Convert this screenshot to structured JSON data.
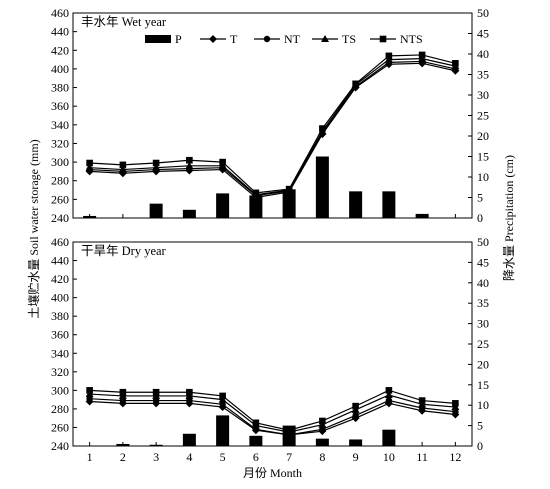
{
  "chart_data": [
    {
      "type": "bar+line",
      "panel_label": "丰水年 Wet year",
      "x_categories": [
        "1",
        "2",
        "3",
        "4",
        "5",
        "6",
        "7",
        "8",
        "9",
        "10",
        "11",
        "12"
      ],
      "xlabel": "",
      "ylabel_left": "",
      "ylabel_right": "",
      "ylim_left": [
        240,
        460
      ],
      "yticks_left": [
        240,
        260,
        280,
        300,
        320,
        340,
        360,
        380,
        400,
        420,
        440,
        460
      ],
      "ylim_right": [
        0,
        50
      ],
      "yticks_right": [
        0,
        5,
        10,
        15,
        20,
        25,
        30,
        35,
        40,
        45,
        50
      ],
      "bars": {
        "name": "P",
        "axis": "right",
        "values": [
          0.5,
          0,
          3.5,
          2,
          6,
          5.5,
          7,
          15,
          6.5,
          6.5,
          1,
          0
        ]
      },
      "series": [
        {
          "name": "T",
          "marker": "diamond",
          "axis": "left",
          "values": [
            290,
            288,
            290,
            291,
            292,
            262,
            268,
            330,
            380,
            405,
            406,
            398
          ]
        },
        {
          "name": "NT",
          "marker": "circle",
          "axis": "left",
          "values": [
            292,
            290,
            292,
            293,
            294,
            264,
            269,
            331,
            381,
            407,
            408,
            400
          ]
        },
        {
          "name": "TS",
          "marker": "triangle",
          "axis": "left",
          "values": [
            294,
            292,
            294,
            296,
            296,
            265,
            270,
            333,
            383,
            410,
            411,
            403
          ]
        },
        {
          "name": "NTS",
          "marker": "square",
          "axis": "left",
          "values": [
            299,
            297,
            299,
            302,
            300,
            267,
            271,
            336,
            384,
            414,
            415,
            406
          ]
        }
      ],
      "legend": {
        "placement": "top",
        "items": [
          "P",
          "T",
          "NT",
          "TS",
          "NTS"
        ]
      },
      "grid": false
    },
    {
      "type": "bar+line",
      "panel_label": "干旱年 Dry year",
      "x_categories": [
        "1",
        "2",
        "3",
        "4",
        "5",
        "6",
        "7",
        "8",
        "9",
        "10",
        "11",
        "12"
      ],
      "xlabel": "月份 Month",
      "ylabel_left": "",
      "ylabel_right": "",
      "ylim_left": [
        240,
        460
      ],
      "yticks_left": [
        240,
        260,
        280,
        300,
        320,
        340,
        360,
        380,
        400,
        420,
        440,
        460
      ],
      "ylim_right": [
        0,
        50
      ],
      "yticks_right": [
        0,
        5,
        10,
        15,
        20,
        25,
        30,
        35,
        40,
        45,
        50
      ],
      "bars": {
        "name": "P",
        "axis": "right",
        "values": [
          0,
          0.5,
          0.3,
          3,
          7.5,
          2.5,
          5,
          1.8,
          1.6,
          4,
          0,
          0
        ]
      },
      "series": [
        {
          "name": "T",
          "marker": "diamond",
          "axis": "left",
          "values": [
            288,
            286,
            286,
            286,
            282,
            257,
            252,
            256,
            270,
            286,
            278,
            274
          ]
        },
        {
          "name": "NT",
          "marker": "circle",
          "axis": "left",
          "values": [
            291,
            289,
            289,
            289,
            285,
            258,
            252,
            258,
            273,
            289,
            281,
            277
          ]
        },
        {
          "name": "TS",
          "marker": "triangle",
          "axis": "left",
          "values": [
            296,
            294,
            294,
            294,
            290,
            262,
            255,
            263,
            279,
            295,
            285,
            282
          ]
        },
        {
          "name": "NTS",
          "marker": "square",
          "axis": "left",
          "values": [
            300,
            298,
            298,
            298,
            294,
            265,
            257,
            267,
            283,
            300,
            289,
            286
          ]
        }
      ],
      "legend": null,
      "grid": false
    }
  ],
  "shared": {
    "ylabel_left": "土壤贮水量 Soil water storage (mm)",
    "ylabel_right": "降水量 Precipitation (cm)",
    "xlabel": "月份 Month"
  }
}
